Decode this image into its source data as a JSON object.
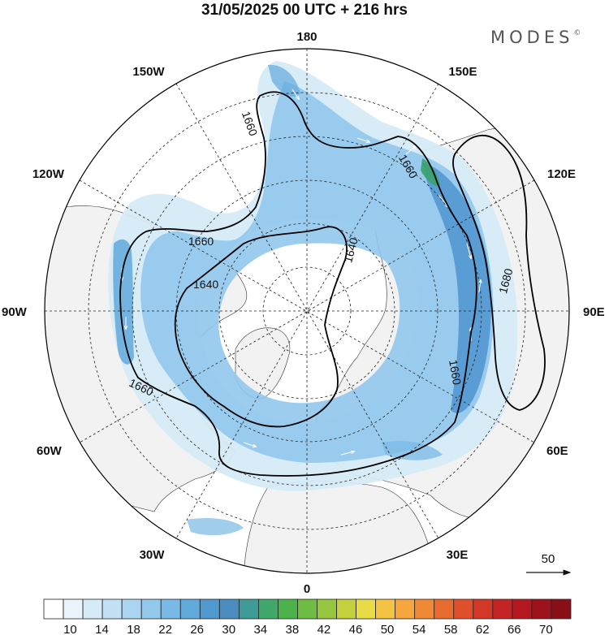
{
  "title": "31/05/2025  00 UTC  + 216 hrs",
  "brand": "MODES",
  "brand_mark": "©",
  "longitude_labels": {
    "top": "180",
    "top_left": "150W",
    "top_right": "150E",
    "upper_left": "120W",
    "upper_right": "120E",
    "left": "90W",
    "right": "90E",
    "lower_left": "60W",
    "lower_right": "60E",
    "bottom_left": "30W",
    "bottom_right": "30E",
    "bottom": "0"
  },
  "contour_labels": {
    "c1": "1660",
    "c2": "1660",
    "c3": "1660",
    "c4": "1640",
    "c5": "1640",
    "c6": "1680",
    "c7": "1660",
    "c8": "1660"
  },
  "vector_reference": "50",
  "colorbar": {
    "tick_labels": [
      "10",
      "14",
      "18",
      "22",
      "26",
      "30",
      "34",
      "38",
      "42",
      "46",
      "50",
      "54",
      "58",
      "62",
      "66",
      "70"
    ],
    "colors": [
      "#ffffff",
      "#eaf4fb",
      "#d6ebf8",
      "#c2e1f5",
      "#aad5f1",
      "#92c8ec",
      "#79b9e5",
      "#62a9dc",
      "#4f98d0",
      "#4b8dc1",
      "#3e9b97",
      "#3fa86a",
      "#4cb24a",
      "#6fbd43",
      "#97c63f",
      "#c2d13d",
      "#eadc47",
      "#f4c343",
      "#f6a63c",
      "#f08935",
      "#e86c30",
      "#e0502c",
      "#d33728",
      "#c52424",
      "#b3191f",
      "#9e131b",
      "#8a0f16"
    ]
  },
  "colors": {
    "land": "#f2f2f2",
    "ocean": "#ffffff",
    "jet_light": "#cfe6f7",
    "jet_mid": "#8fc3ea",
    "jet_core": "#4f94cf",
    "jet_max": "#3aa36e"
  }
}
